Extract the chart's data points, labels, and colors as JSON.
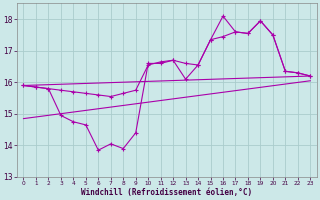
{
  "bg_color": "#cce8e8",
  "grid_color": "#aacccc",
  "line_color": "#aa00aa",
  "xlabel": "Windchill (Refroidissement éolien,°C)",
  "xlim": [
    -0.5,
    23.5
  ],
  "ylim": [
    13,
    18.5
  ],
  "yticks": [
    13,
    14,
    15,
    16,
    17,
    18
  ],
  "xticks": [
    0,
    1,
    2,
    3,
    4,
    5,
    6,
    7,
    8,
    9,
    10,
    11,
    12,
    13,
    14,
    15,
    16,
    17,
    18,
    19,
    20,
    21,
    22,
    23
  ],
  "series": [
    {
      "x": [
        0,
        1,
        2,
        3,
        4,
        5,
        6,
        7,
        8,
        9,
        10,
        11,
        12,
        13,
        14,
        15,
        16,
        17,
        18,
        19,
        20,
        21,
        22,
        23
      ],
      "y": [
        15.9,
        15.85,
        15.8,
        15.75,
        15.7,
        15.65,
        15.6,
        15.55,
        15.65,
        15.75,
        16.55,
        16.65,
        16.7,
        16.6,
        16.55,
        17.35,
        17.45,
        17.6,
        17.55,
        17.95,
        17.5,
        16.35,
        16.3,
        16.2
      ],
      "marker": true
    },
    {
      "x": [
        0,
        1,
        2,
        3,
        4,
        5,
        6,
        7,
        8,
        9,
        10,
        11,
        12,
        13,
        14,
        15,
        16,
        17,
        18,
        19,
        20,
        21,
        22,
        23
      ],
      "y": [
        15.9,
        15.85,
        15.8,
        14.95,
        14.75,
        14.65,
        13.85,
        14.05,
        13.9,
        14.4,
        16.6,
        16.6,
        16.7,
        16.1,
        16.55,
        17.35,
        18.1,
        17.6,
        17.55,
        17.95,
        17.5,
        16.35,
        16.3,
        16.2
      ],
      "marker": true
    },
    {
      "x": [
        0,
        23
      ],
      "y": [
        15.9,
        16.2
      ],
      "marker": false
    },
    {
      "x": [
        0,
        23
      ],
      "y": [
        14.85,
        16.05
      ],
      "marker": false
    }
  ]
}
